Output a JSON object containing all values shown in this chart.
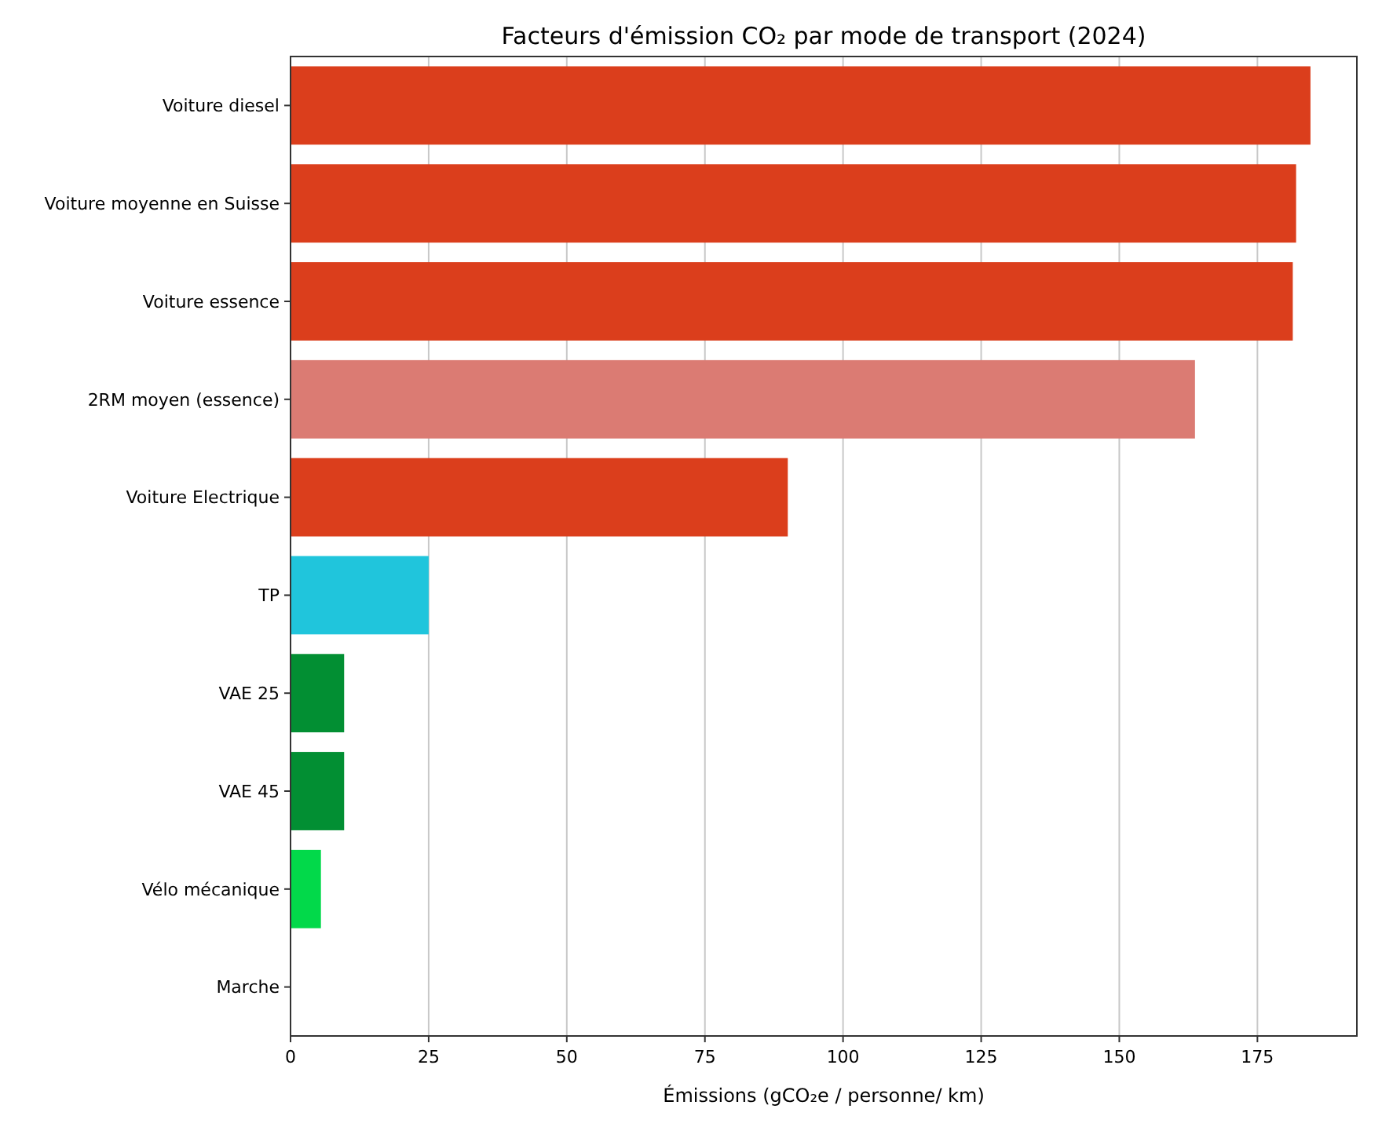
{
  "chart_data": {
    "type": "bar",
    "orientation": "horizontal",
    "title": "Facteurs d'émission CO₂ par mode de transport (2024)",
    "xlabel": "Émissions (gCO₂e / personne/ km)",
    "categories": [
      "Voiture diesel",
      "Voiture moyenne en Suisse",
      "Voiture essence",
      "2RM moyen (essence)",
      "Voiture Electrique",
      "TP",
      "VAE 25",
      "VAE 45",
      "Vélo mécanique",
      "Marche"
    ],
    "values": [
      184.6,
      182,
      181.4,
      163.7,
      90,
      25,
      9.7,
      9.7,
      5.5,
      0
    ],
    "colors": [
      "#db3e1c",
      "#db3e1c",
      "#db3e1c",
      "#db7b73",
      "#db3e1c",
      "#20c5dc",
      "#028f33",
      "#028f33",
      "#02d94a",
      "#02d94a"
    ],
    "xlim": [
      0,
      193
    ],
    "xticks": [
      0,
      25,
      50,
      75,
      100,
      125,
      150,
      175
    ],
    "grid": "x"
  }
}
